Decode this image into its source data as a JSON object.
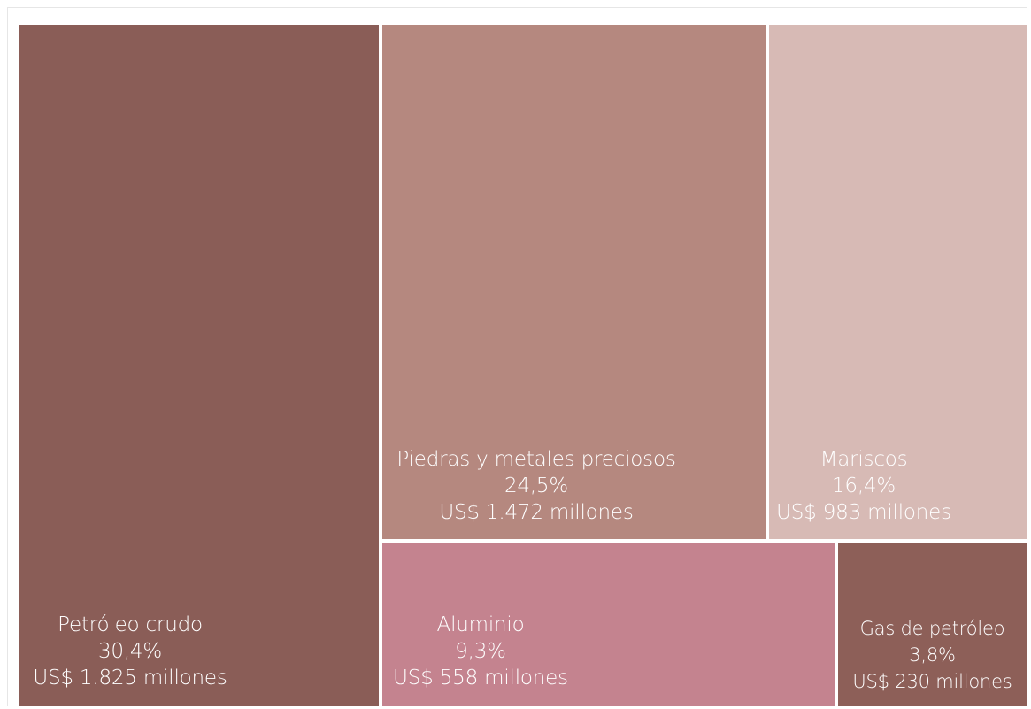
{
  "chart_data": {
    "type": "treemap",
    "items": [
      {
        "name": "Petróleo crudo",
        "percent": "30,4%",
        "amount": "US$ 1.825 millones",
        "value": 1825,
        "color": "#8a5d57"
      },
      {
        "name": "Piedras y metales preciosos",
        "percent": "24,5%",
        "amount": "US$ 1.472 millones",
        "value": 1472,
        "color": "#b5887f"
      },
      {
        "name": "Mariscos",
        "percent": "16,4%",
        "amount": "US$ 983 millones",
        "value": 983,
        "color": "#d7bab5"
      },
      {
        "name": "Aluminio",
        "percent": "9,3%",
        "amount": "US$ 558 millones",
        "value": 558,
        "color": "#c4838f"
      },
      {
        "name": "Gas de petróleo",
        "percent": "3,8%",
        "amount": "US$ 230 millones",
        "value": 230,
        "color": "#8d5f58"
      }
    ]
  }
}
